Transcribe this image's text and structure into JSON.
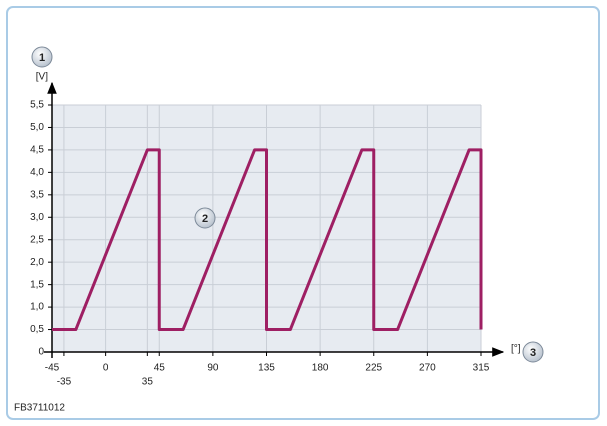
{
  "chart_data": {
    "type": "line",
    "x_label": "[°]",
    "y_label": "[V]",
    "footer": "FB3711012",
    "annotations": [
      "1",
      "2",
      "3"
    ],
    "xlim": [
      -45,
      315
    ],
    "xticks": [
      -45,
      -35,
      0,
      35,
      45,
      90,
      135,
      180,
      225,
      270,
      315
    ],
    "ylim": [
      0,
      5.5
    ],
    "yticks": [
      0,
      {
        "value": 0.5,
        "label": "0,5"
      },
      {
        "value": 1,
        "label": "1,0"
      },
      {
        "value": 1.5,
        "label": "1,5"
      },
      {
        "value": 2,
        "label": "2,0"
      },
      {
        "value": 2.5,
        "label": "2,5"
      },
      {
        "value": 3,
        "label": "3,0"
      },
      {
        "value": 3.5,
        "label": "3,5"
      },
      {
        "value": 4,
        "label": "4,0"
      },
      {
        "value": 4.5,
        "label": "4,5"
      },
      {
        "value": 5,
        "label": "5,0"
      },
      {
        "value": 5.5,
        "label": "5,5"
      }
    ],
    "grid": true,
    "color": "#9e1f63",
    "x": [
      -45,
      -25,
      35,
      45,
      45,
      65,
      125,
      135,
      135,
      155,
      215,
      225,
      225,
      245,
      305,
      315,
      315
    ],
    "values": [
      0.5,
      0.5,
      4.5,
      4.5,
      0.5,
      0.5,
      4.5,
      4.5,
      0.5,
      0.5,
      4.5,
      4.5,
      0.5,
      0.5,
      4.5,
      4.5,
      0.5
    ]
  }
}
